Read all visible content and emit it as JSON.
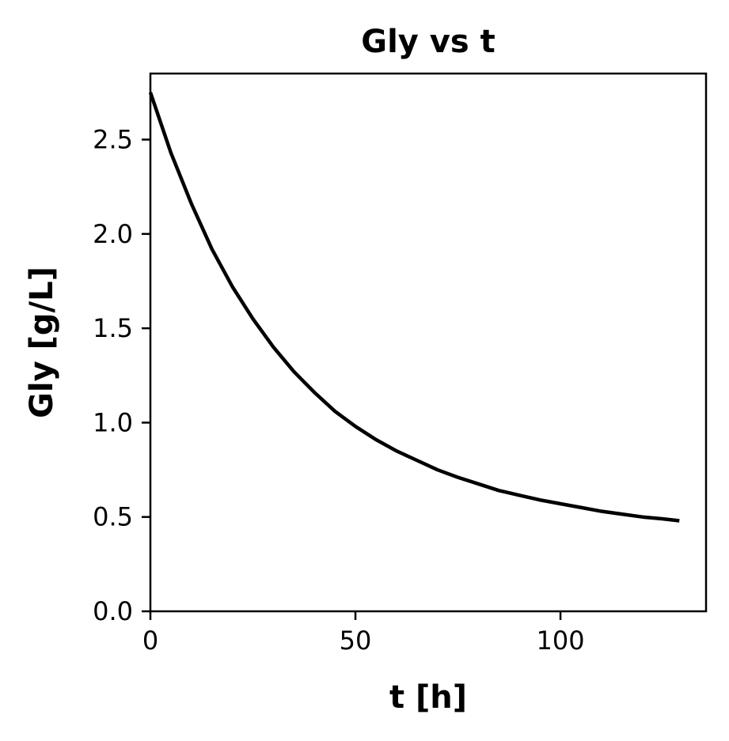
{
  "chart_data": {
    "type": "line",
    "title": "Gly vs t",
    "xlabel": "t [h]",
    "ylabel": "Gly [g/L]",
    "xlim": [
      0,
      135.5
    ],
    "ylim": [
      0,
      2.85
    ],
    "xticks": [
      0,
      50,
      100
    ],
    "xtick_labels": [
      "0",
      "50",
      "100"
    ],
    "yticks": [
      0,
      0.5,
      1.0,
      1.5,
      2.0,
      2.5
    ],
    "ytick_labels": [
      "0.0",
      "0.5",
      "1.0",
      "1.5",
      "2.0",
      "2.5"
    ],
    "grid": false,
    "series": [
      {
        "color": "#000000",
        "x": [
          0,
          5,
          10,
          15,
          20,
          25,
          30,
          35,
          40,
          45,
          50,
          55,
          60,
          65,
          70,
          75,
          80,
          85,
          90,
          95,
          100,
          105,
          110,
          115,
          120,
          125,
          129
        ],
        "y": [
          2.75,
          2.43,
          2.16,
          1.92,
          1.72,
          1.55,
          1.4,
          1.27,
          1.16,
          1.06,
          0.98,
          0.91,
          0.85,
          0.8,
          0.75,
          0.71,
          0.675,
          0.64,
          0.615,
          0.59,
          0.57,
          0.55,
          0.53,
          0.515,
          0.5,
          0.49,
          0.48
        ]
      }
    ]
  }
}
